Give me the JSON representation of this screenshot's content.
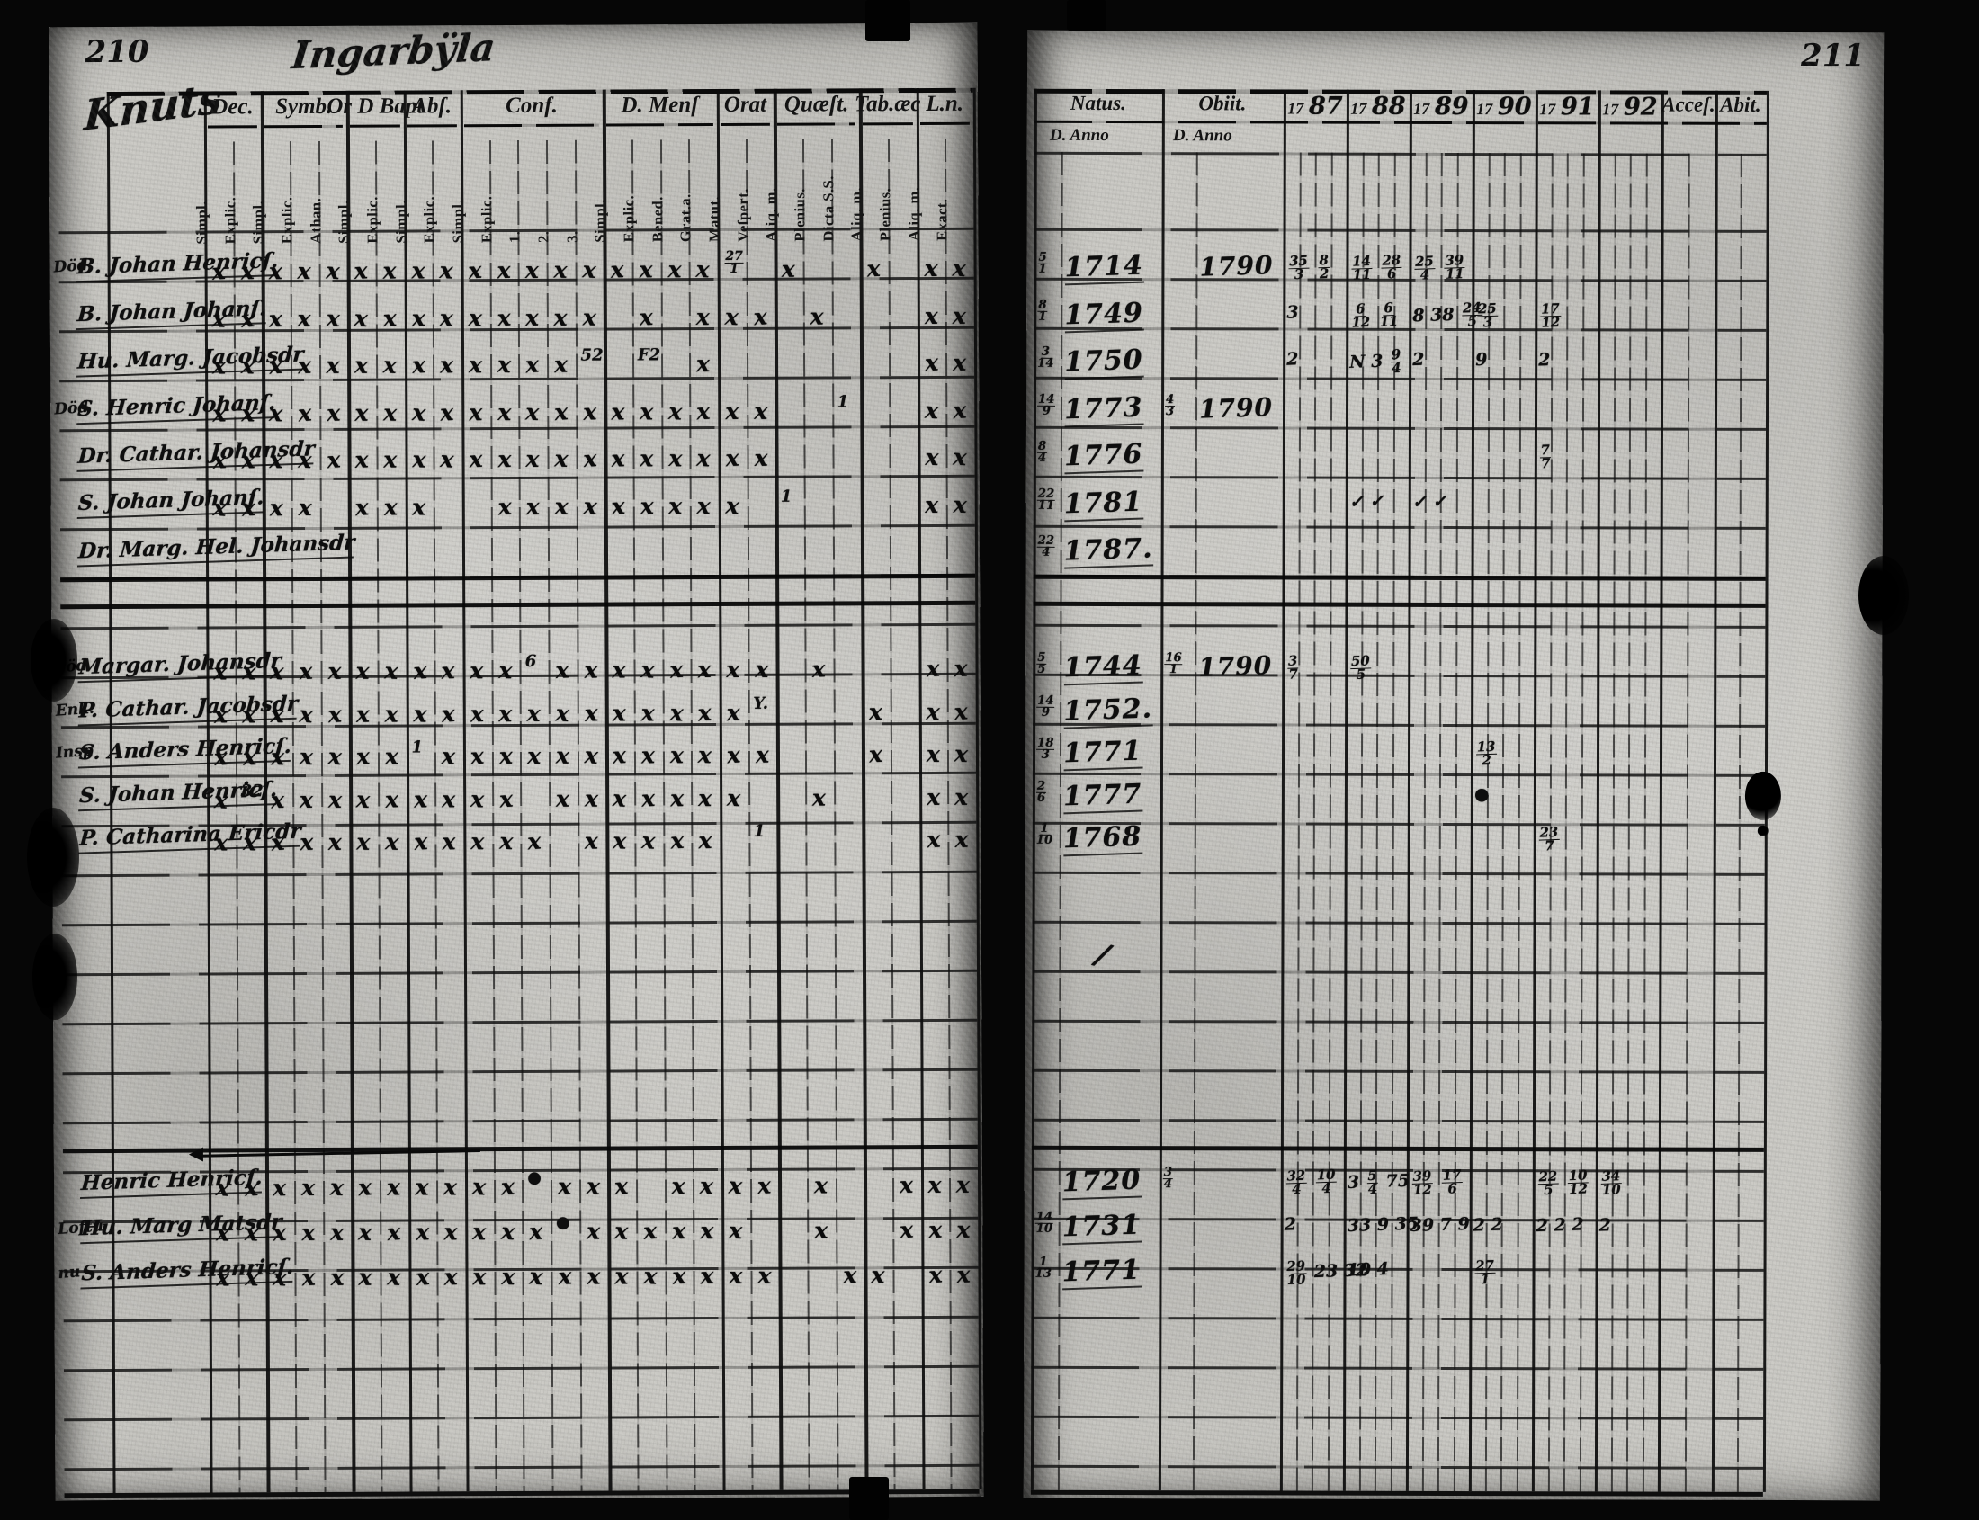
{
  "scan": {
    "left_page": {
      "page_number": "210",
      "title": "Ingarbÿla",
      "names_header_script": "Knuts",
      "groups": [
        {
          "label": "Dec.",
          "subs": [
            "Simpl.",
            "Explic."
          ]
        },
        {
          "label": "Symb.",
          "subs": [
            "Simpl.",
            "Explic.",
            "Athan."
          ]
        },
        {
          "label": "Or D Bapt",
          "subs": [
            "Simpl.",
            "Explic."
          ]
        },
        {
          "label": "Abſ.",
          "subs": [
            "Simpl.",
            "Explic."
          ]
        },
        {
          "label": "Conf.",
          "subs": [
            "Simpl.",
            "Explic.",
            "1.",
            "2.",
            "3."
          ]
        },
        {
          "label": "D. Menſ",
          "subs": [
            "Simpl.",
            "Explic.",
            "Bened.",
            "Grat.a."
          ]
        },
        {
          "label": "Orat",
          "subs": [
            "Matut.",
            "Veſpert."
          ]
        },
        {
          "label": "Quæſt.",
          "subs": [
            "Aliq. m.",
            "Plenius.",
            "Dicta S.S."
          ]
        },
        {
          "label": "Tab.æc",
          "subs": [
            "Aliq. m.",
            "Plenius."
          ]
        },
        {
          "label": "L.n.",
          "subs": [
            "Aliq. m.",
            "Exact."
          ]
        }
      ],
      "row_groups": [
        [
          {
            "margin": "Död",
            "name": "B. Johan Henricſ.",
            "marks": "xxxxxxxxxxxxxxxxxx*.x..x.xx",
            "extras": [
              {
                "c": 18,
                "t": "27/1"
              }
            ]
          },
          {
            "margin": "",
            "name": "B. Johan Johanſ.",
            "marks": "xxxxxxxxxxxxxx.x.xxx.x...xx",
            "extras": []
          },
          {
            "margin": "",
            "name": "Hu. Marg. Jacobsdr",
            "marks": "xxxxxxxxxxxxx*.*.x.......xx",
            "extras": [
              {
                "c": 13,
                "t": "52"
              },
              {
                "c": 15,
                "t": "F2"
              }
            ]
          },
          {
            "margin": "Död",
            "name": "S. Henric Johanſ.",
            "marks": "xxxxxxxxxxxxxxxxxxxx..*..xx",
            "extras": [
              {
                "c": 22,
                "t": "1"
              }
            ]
          },
          {
            "margin": "",
            "name": "Dr. Cathar. Johansdr",
            "marks": "xxxxxxxxxxxxxxxxxxxx.....xx",
            "extras": []
          },
          {
            "margin": "",
            "name": "S. Johan Johanſ.",
            "marks": "xxxx.xxx..xxxxxxxxx.*....xx",
            "extras": [
              {
                "c": 20,
                "t": "1"
              }
            ]
          },
          {
            "margin": "",
            "name": "Dr. Marg. Hel. Johansdr",
            "marks": "",
            "extras": []
          }
        ],
        [
          {
            "margin": "död",
            "name": "Margar. Johansdr",
            "marks": "xxxxxxxxxxx*xxxxxxxx.x...xx",
            "extras": [
              {
                "c": 11,
                "t": "6"
              }
            ]
          },
          {
            "margin": "Enk.",
            "name": "P. Cathar. Jacobsdr",
            "marks": "xxxxxxxxxxxxxxxxxxx*...x.xx",
            "extras": [
              {
                "c": 19,
                "t": "Y."
              }
            ]
          },
          {
            "margin": "Insp",
            "name": "S. Anders Henricſ.",
            "marks": "xxxxxxx*xxxxxxxxxxxx...x.xx",
            "extras": [
              {
                "c": 7,
                "t": "1"
              }
            ]
          },
          {
            "margin": "",
            "name": "S. Johan Henricſ.",
            "marks": "x*xxxxxxxxx.xxxxxxx..x...xx",
            "extras": [
              {
                "c": 1,
                "t": "32"
              }
            ]
          },
          {
            "margin": "",
            "name": "P. Catharina Ericdr",
            "marks": "xxxxxxxxxxxx.xxxxx.*.....xx",
            "extras": [
              {
                "c": 19,
                "t": "1"
              }
            ]
          }
        ],
        [
          {
            "margin": "",
            "name": "Henric Henricſ.",
            "marks": "xxxxxxxxxxx*xxx.xxxx.x..xxx",
            "extras": [
              {
                "c": 11,
                "t": "●"
              }
            ]
          },
          {
            "margin": "Loftu",
            "name": "Hu. Marg Matsdr",
            "marks": "xxxxxxxxxxxx*xxxxxx..x..xxx",
            "extras": [
              {
                "c": 12,
                "t": "●"
              }
            ]
          },
          {
            "margin": "nu",
            "name": "S. Anders Henricſ.",
            "marks": "xxxxxxxxxxxxxxxxxxxx..xx.xx",
            "extras": []
          }
        ]
      ]
    },
    "right_page": {
      "page_number": "211",
      "col_headers": [
        "Natus.",
        "Obiit.",
        "17 87",
        "17 88",
        "17 89",
        "17 90",
        "17 91",
        "17 92",
        "Acceſ.",
        "Abit."
      ],
      "anno_headers": [
        "D. Anno",
        "D. Anno"
      ],
      "row_groups": [
        [
          {
            "nf": "5/1",
            "ny": "1714",
            "of": "",
            "oy": "1790",
            "cells": [
              {
                "y": "1787",
                "t": "35/3 8/2"
              },
              {
                "y": "1788",
                "t": "14/11 28/6"
              },
              {
                "y": "1789",
                "t": "25/4 39/11"
              }
            ]
          },
          {
            "nf": "8/1",
            "ny": "1749",
            "of": "",
            "oy": "",
            "cells": [
              {
                "y": "1787",
                "t": "3"
              },
              {
                "y": "1788",
                "t": "6/12 6/11"
              },
              {
                "y": "1789",
                "t": "8 38 24/5"
              },
              {
                "y": "1790",
                "t": "25/3"
              },
              {
                "y": "1791",
                "t": "17/12"
              }
            ]
          },
          {
            "nf": "3/14",
            "ny": "1750",
            "of": "",
            "oy": "",
            "cells": [
              {
                "y": "1787",
                "t": "2"
              },
              {
                "y": "1788",
                "t": "N 3 9/4"
              },
              {
                "y": "1789",
                "t": "2"
              },
              {
                "y": "1790",
                "t": "9"
              },
              {
                "y": "1791",
                "t": "2"
              }
            ]
          },
          {
            "nf": "14/9",
            "ny": "1773",
            "of": "4/3",
            "oy": "1790",
            "cells": []
          },
          {
            "nf": "8/4",
            "ny": "1776",
            "of": "",
            "oy": "",
            "cells": [
              {
                "y": "1791",
                "t": "7/7"
              }
            ]
          },
          {
            "nf": "22/11",
            "ny": "1781",
            "of": "",
            "oy": "",
            "cells": [
              {
                "y": "1788",
                "t": "✓ ✓"
              },
              {
                "y": "1789",
                "t": "✓ ✓"
              }
            ]
          },
          {
            "nf": "22/4",
            "ny": "1787.",
            "of": "",
            "oy": "",
            "cells": []
          }
        ],
        [
          {
            "nf": "5/5",
            "ny": "1744",
            "of": "16/1",
            "oy": "1790",
            "cells": [
              {
                "y": "1787",
                "t": "3/7"
              },
              {
                "y": "1788",
                "t": "50/5"
              }
            ]
          },
          {
            "nf": "14/9",
            "ny": "1752.",
            "of": "",
            "oy": "",
            "cells": []
          },
          {
            "nf": "18/3",
            "ny": "1771",
            "of": "",
            "oy": "",
            "cells": [
              {
                "y": "1790",
                "t": "13/2"
              }
            ]
          },
          {
            "nf": "2/6",
            "ny": "1777",
            "of": "",
            "oy": "",
            "cells": [
              {
                "y": "1790",
                "t": "●"
              }
            ]
          },
          {
            "nf": "1/10",
            "ny": "1768",
            "of": "",
            "oy": "",
            "cells": [
              {
                "y": "1791",
                "t": "23/7"
              }
            ]
          }
        ],
        [
          {
            "nf": "",
            "ny": "1720",
            "of": "3/4",
            "oy": "",
            "cells": [
              {
                "y": "1787",
                "t": "32/4 10/4"
              },
              {
                "y": "1788",
                "t": "3 5/4 75"
              },
              {
                "y": "1789",
                "t": "39/12 17/6"
              },
              {
                "y": "1791",
                "t": "22/5 10/12"
              },
              {
                "y": "1792",
                "t": "34/10"
              }
            ]
          },
          {
            "nf": "14/10",
            "ny": "1731",
            "of": "",
            "oy": "",
            "cells": [
              {
                "y": "1787",
                "t": "2"
              },
              {
                "y": "1788",
                "t": "33 9 35"
              },
              {
                "y": "1789",
                "t": "39 7 9"
              },
              {
                "y": "1790",
                "t": "2 2"
              },
              {
                "y": "1791",
                "t": "2 2 2"
              },
              {
                "y": "1792",
                "t": "2"
              }
            ]
          },
          {
            "nf": "1/13",
            "ny": "1771",
            "of": "",
            "oy": "",
            "cells": [
              {
                "y": "1787",
                "t": "29/10 23 32"
              },
              {
                "y": "1788",
                "t": "10 4"
              },
              {
                "y": "1790",
                "t": "27/1"
              }
            ]
          }
        ]
      ]
    }
  }
}
